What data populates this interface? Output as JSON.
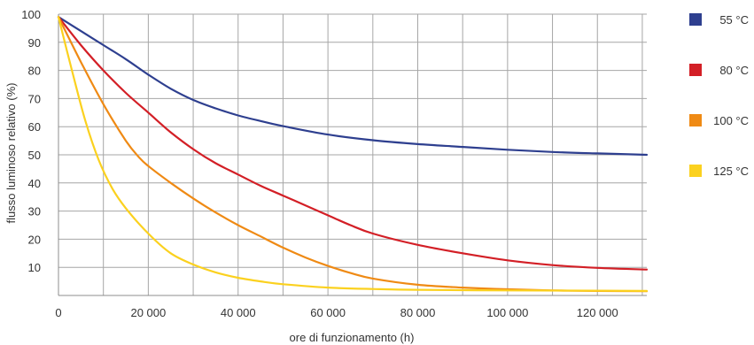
{
  "chart_data": {
    "type": "line",
    "xlabel": "ore di funzionamento (h)",
    "ylabel": "flusso luminoso relativo (%)",
    "xlim": [
      0,
      131000
    ],
    "ylim": [
      0,
      100
    ],
    "x_ticks": [
      0,
      20000,
      40000,
      60000,
      80000,
      100000,
      120000
    ],
    "x_tick_labels": [
      "0",
      "20 000",
      "40 000",
      "60 000",
      "80 000",
      "100 000",
      "120 000"
    ],
    "y_ticks": [
      10,
      20,
      30,
      40,
      50,
      60,
      70,
      80,
      90,
      100
    ],
    "y_tick_labels": [
      "10",
      "20",
      "30",
      "40",
      "50",
      "60",
      "70",
      "80",
      "90",
      "100"
    ],
    "x_grid_step": 10000,
    "y_grid_step": 10,
    "grid": true,
    "legend_position": "right",
    "series": [
      {
        "name": "55 °C",
        "color": "#2e3f8f",
        "points": [
          [
            0,
            99
          ],
          [
            5000,
            94
          ],
          [
            10000,
            89
          ],
          [
            15000,
            84
          ],
          [
            20000,
            78.5
          ],
          [
            25000,
            73.5
          ],
          [
            30000,
            69.5
          ],
          [
            35000,
            66.5
          ],
          [
            40000,
            64
          ],
          [
            45000,
            62
          ],
          [
            50000,
            60.2
          ],
          [
            60000,
            57.2
          ],
          [
            70000,
            55.2
          ],
          [
            80000,
            53.8
          ],
          [
            90000,
            52.8
          ],
          [
            100000,
            51.8
          ],
          [
            110000,
            51
          ],
          [
            120000,
            50.5
          ],
          [
            131000,
            50
          ]
        ]
      },
      {
        "name": "80 °C",
        "color": "#d31f26",
        "points": [
          [
            0,
            99
          ],
          [
            5000,
            89
          ],
          [
            10000,
            80
          ],
          [
            15000,
            72
          ],
          [
            20000,
            65
          ],
          [
            25000,
            58
          ],
          [
            30000,
            52
          ],
          [
            35000,
            47
          ],
          [
            40000,
            43
          ],
          [
            45000,
            39
          ],
          [
            50000,
            35.5
          ],
          [
            55000,
            32
          ],
          [
            60000,
            28.5
          ],
          [
            65000,
            25
          ],
          [
            70000,
            22
          ],
          [
            80000,
            18
          ],
          [
            90000,
            15
          ],
          [
            100000,
            12.5
          ],
          [
            110000,
            10.8
          ],
          [
            120000,
            9.8
          ],
          [
            131000,
            9.2
          ]
        ]
      },
      {
        "name": "100 °C",
        "color": "#ef8a14",
        "points": [
          [
            0,
            99
          ],
          [
            5000,
            83
          ],
          [
            10000,
            68
          ],
          [
            15000,
            55
          ],
          [
            18000,
            49
          ],
          [
            20000,
            46
          ],
          [
            25000,
            40
          ],
          [
            30000,
            34.5
          ],
          [
            35000,
            29.5
          ],
          [
            40000,
            25
          ],
          [
            45000,
            21
          ],
          [
            50000,
            17
          ],
          [
            55000,
            13.5
          ],
          [
            60000,
            10.5
          ],
          [
            65000,
            8
          ],
          [
            70000,
            6
          ],
          [
            80000,
            3.8
          ],
          [
            90000,
            2.8
          ],
          [
            100000,
            2.2
          ],
          [
            110000,
            1.8
          ],
          [
            120000,
            1.6
          ],
          [
            131000,
            1.5
          ]
        ]
      },
      {
        "name": "125 °C",
        "color": "#fbd11f",
        "points": [
          [
            0,
            99
          ],
          [
            3000,
            80
          ],
          [
            6000,
            62
          ],
          [
            9000,
            48
          ],
          [
            12000,
            38
          ],
          [
            15000,
            31
          ],
          [
            20000,
            22
          ],
          [
            25000,
            15
          ],
          [
            30000,
            11
          ],
          [
            35000,
            8.2
          ],
          [
            40000,
            6.3
          ],
          [
            45000,
            5
          ],
          [
            50000,
            4
          ],
          [
            60000,
            2.8
          ],
          [
            70000,
            2.3
          ],
          [
            80000,
            2
          ],
          [
            100000,
            1.8
          ],
          [
            120000,
            1.7
          ],
          [
            131000,
            1.6
          ]
        ]
      }
    ]
  }
}
